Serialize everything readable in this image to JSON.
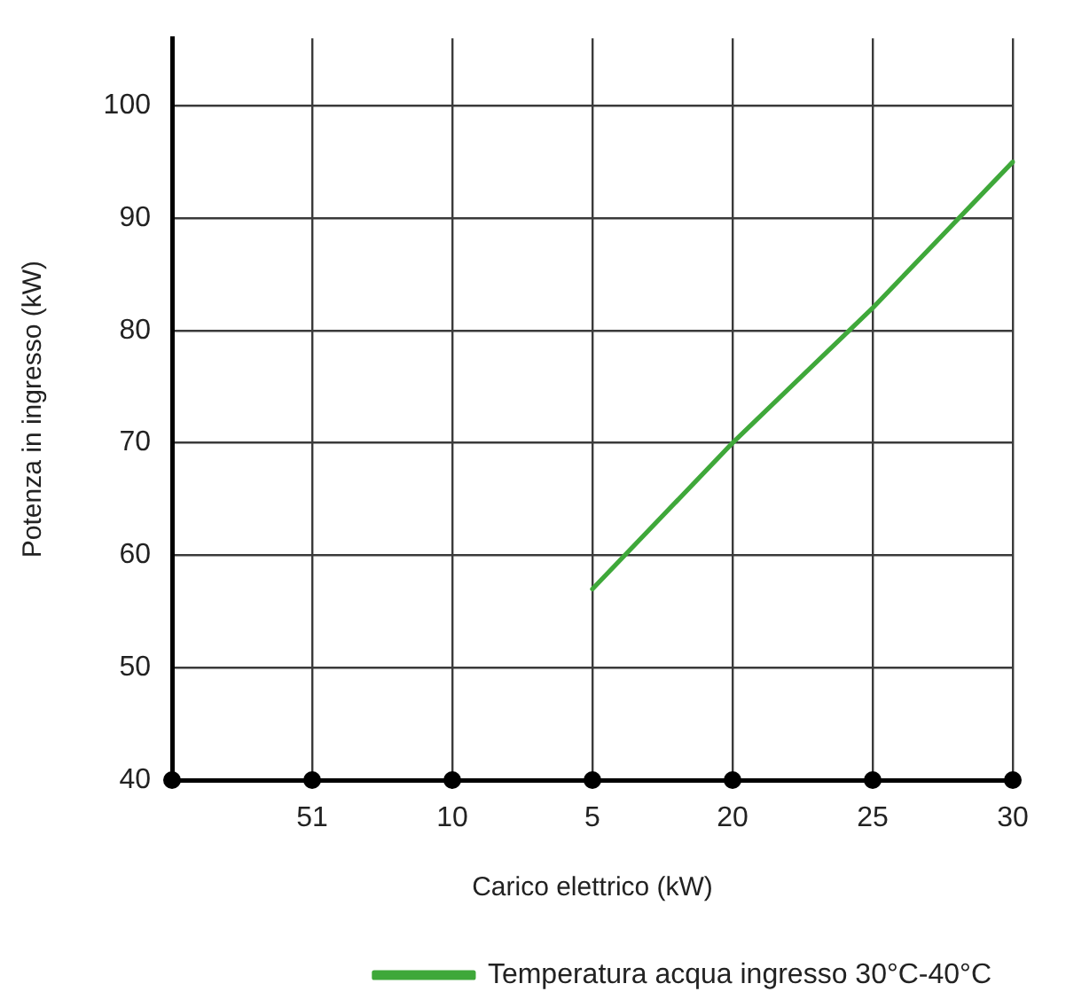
{
  "chart_data": {
    "type": "line",
    "xlabel": "Carico elettrico (kW)",
    "ylabel": "Potenza in ingresso (kW)",
    "categories": [
      null,
      "51",
      "10",
      "5",
      "20",
      "25",
      "30"
    ],
    "series": [
      {
        "name": "Temperatura acqua ingresso 30°C-40°C",
        "color": "#3fa83a",
        "values": [
          null,
          null,
          null,
          57,
          70,
          82,
          95
        ]
      }
    ],
    "ylim": [
      40,
      106
    ],
    "yticks": [
      40,
      50,
      60,
      70,
      80,
      90,
      100
    ],
    "grid": true,
    "legend": "bottom right",
    "marker": "none",
    "line_style": "solid"
  }
}
